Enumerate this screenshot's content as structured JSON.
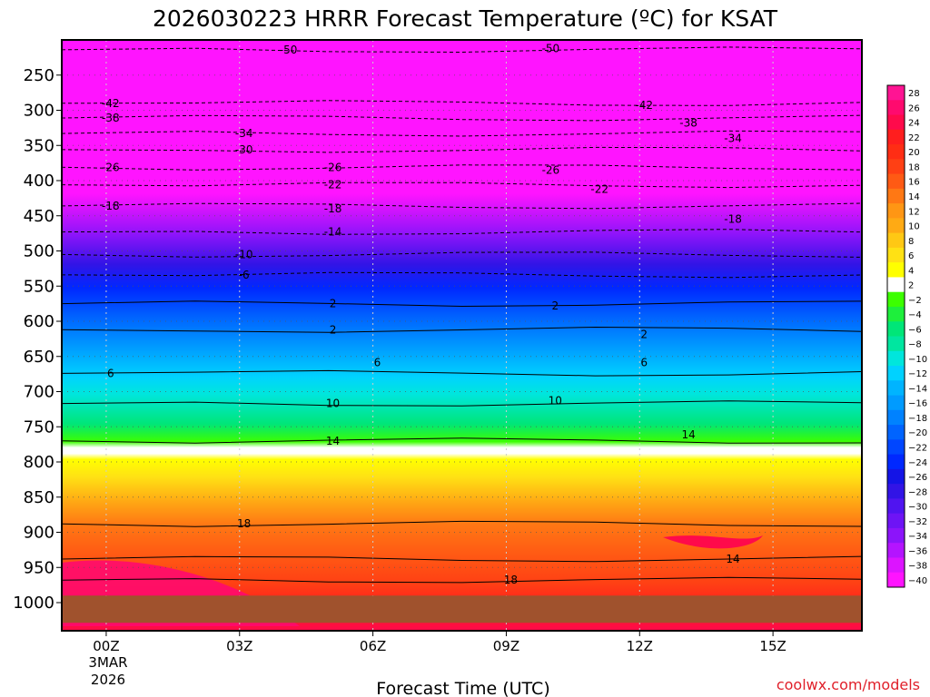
{
  "chart_data": {
    "type": "heatmap",
    "title": "2026030223 HRRR Forecast Temperature (ºC) for KSAT",
    "xlabel": "Forecast Time (UTC)",
    "x_ticks": [
      "00Z",
      "03Z",
      "06Z",
      "09Z",
      "12Z",
      "15Z"
    ],
    "x_tick_hours": [
      0,
      3,
      6,
      9,
      12,
      15
    ],
    "x_range_hours": [
      -1,
      17
    ],
    "date_label": [
      "3MAR",
      "2026"
    ],
    "y_ticks": [
      250,
      300,
      350,
      400,
      450,
      500,
      550,
      600,
      650,
      700,
      750,
      800,
      850,
      900,
      950,
      1000
    ],
    "y_range_hpa": [
      200,
      1040
    ],
    "ground_level_hpa": 990,
    "colorbar_ticks": [
      28,
      26,
      24,
      22,
      20,
      18,
      16,
      14,
      12,
      10,
      8,
      6,
      4,
      2,
      -2,
      -4,
      -6,
      -8,
      -10,
      -12,
      -14,
      -16,
      -18,
      -20,
      -22,
      -24,
      -26,
      -28,
      -30,
      -32,
      -34,
      -36,
      -38,
      -40
    ],
    "colorbar_colors": [
      "#ff1493",
      "#ff0a6e",
      "#ff0a4b",
      "#ff1e1e",
      "#ff2d14",
      "#ff4014",
      "#ff5a14",
      "#ff7814",
      "#ff9614",
      "#ffaa14",
      "#ffc814",
      "#ffe114",
      "#ffff00",
      "#ffffff",
      "#3cff00",
      "#1eef3c",
      "#00e678",
      "#00e6a0",
      "#00e6dc",
      "#00d2ff",
      "#00b4ff",
      "#009bff",
      "#0082ff",
      "#0064ff",
      "#0046ff",
      "#0028ff",
      "#1414e6",
      "#3214e6",
      "#5014f0",
      "#6e14f5",
      "#8c14fa",
      "#b414ff",
      "#dc14ff",
      "#ff14ff"
    ],
    "contour_labels": [
      {
        "text": "-50",
        "hour": 4.1,
        "p": 214
      },
      {
        "text": "-50",
        "hour": 10.0,
        "p": 212
      },
      {
        "text": "-42",
        "hour": 0.1,
        "p": 290
      },
      {
        "text": "-42",
        "hour": 12.1,
        "p": 293
      },
      {
        "text": "-38",
        "hour": 0.1,
        "p": 311
      },
      {
        "text": "-38",
        "hour": 13.1,
        "p": 318
      },
      {
        "text": "-34",
        "hour": 3.1,
        "p": 333
      },
      {
        "text": "-34",
        "hour": 14.1,
        "p": 340
      },
      {
        "text": "-30",
        "hour": 3.1,
        "p": 356
      },
      {
        "text": "-26",
        "hour": 0.1,
        "p": 381
      },
      {
        "text": "-26",
        "hour": 5.1,
        "p": 381
      },
      {
        "text": "-26",
        "hour": 10.0,
        "p": 385
      },
      {
        "text": "-22",
        "hour": 5.1,
        "p": 406
      },
      {
        "text": "-22",
        "hour": 11.1,
        "p": 412
      },
      {
        "text": "-18",
        "hour": 0.1,
        "p": 436
      },
      {
        "text": "-18",
        "hour": 5.1,
        "p": 440
      },
      {
        "text": "-18",
        "hour": 14.1,
        "p": 455
      },
      {
        "text": "-14",
        "hour": 5.1,
        "p": 473
      },
      {
        "text": "-10",
        "hour": 3.1,
        "p": 505
      },
      {
        "text": "-6",
        "hour": 3.1,
        "p": 534
      },
      {
        "text": "2",
        "hour": 5.1,
        "p": 575
      },
      {
        "text": "2",
        "hour": 10.1,
        "p": 578
      },
      {
        "text": "2",
        "hour": 5.1,
        "p": 612
      },
      {
        "text": "2",
        "hour": 12.1,
        "p": 619
      },
      {
        "text": "6",
        "hour": 0.1,
        "p": 674
      },
      {
        "text": "6",
        "hour": 6.1,
        "p": 659
      },
      {
        "text": "6",
        "hour": 12.1,
        "p": 659
      },
      {
        "text": "10",
        "hour": 5.1,
        "p": 717
      },
      {
        "text": "10",
        "hour": 10.1,
        "p": 713
      },
      {
        "text": "14",
        "hour": 5.1,
        "p": 770
      },
      {
        "text": "14",
        "hour": 13.1,
        "p": 761
      },
      {
        "text": "18",
        "hour": 3.1,
        "p": 888
      },
      {
        "text": "18",
        "hour": 9.1,
        "p": 968
      },
      {
        "text": "14",
        "hour": 14.1,
        "p": 938
      }
    ],
    "credit": "coolwx.com/models"
  }
}
